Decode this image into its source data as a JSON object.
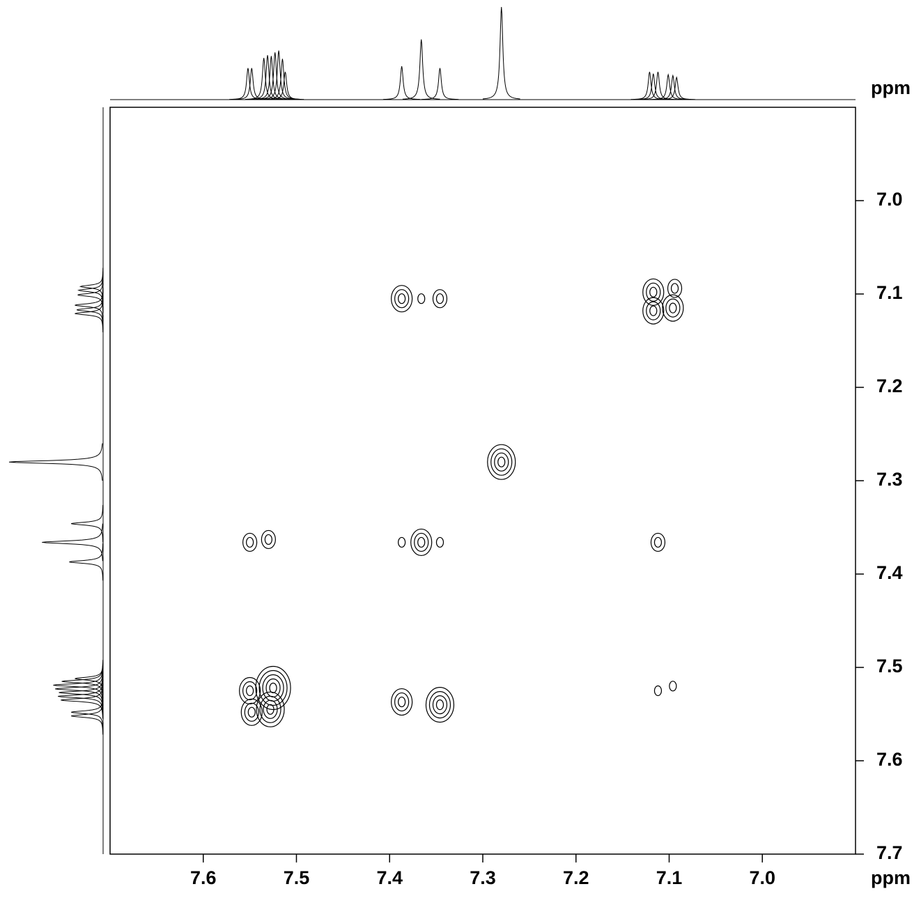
{
  "chart_data": {
    "type": "contour",
    "xlabel": "ppm",
    "ylabel": "ppm",
    "xlim": [
      7.7,
      6.9
    ],
    "ylim": [
      6.9,
      7.7
    ],
    "xticks": [
      7.6,
      7.5,
      7.4,
      7.3,
      7.2,
      7.1,
      {
        "value": 7.0,
        "label": "7.0"
      }
    ],
    "yticks": [
      {
        "value": 7.0,
        "label": "7.0"
      },
      7.1,
      7.2,
      7.3,
      7.4,
      7.5,
      7.6,
      7.7
    ],
    "color": "#000000",
    "projection": {
      "shifts": [
        7.552,
        7.548,
        7.535,
        7.531,
        7.527,
        7.523,
        7.519,
        7.515,
        7.512,
        7.387,
        7.366,
        7.346,
        7.28,
        7.121,
        7.117,
        7.112,
        7.101,
        7.096,
        7.092
      ],
      "intensities": [
        34,
        34,
        45,
        48,
        47,
        51,
        53,
        44,
        30,
        36,
        65,
        34,
        100,
        30,
        28,
        30,
        27,
        26,
        24
      ]
    },
    "peaks": [
      {
        "x": 7.525,
        "y": 7.522,
        "levels": 5
      },
      {
        "x": 7.55,
        "y": 7.525,
        "levels": 3
      },
      {
        "x": 7.548,
        "y": 7.548,
        "levels": 3
      },
      {
        "x": 7.528,
        "y": 7.545,
        "levels": 4
      },
      {
        "x": 7.387,
        "y": 7.537,
        "levels": 3
      },
      {
        "x": 7.346,
        "y": 7.54,
        "levels": 4
      },
      {
        "x": 7.112,
        "y": 7.525,
        "levels": 1
      },
      {
        "x": 7.096,
        "y": 7.52,
        "levels": 1
      },
      {
        "x": 7.55,
        "y": 7.366,
        "levels": 2
      },
      {
        "x": 7.53,
        "y": 7.363,
        "levels": 2
      },
      {
        "x": 7.387,
        "y": 7.366,
        "levels": 1
      },
      {
        "x": 7.366,
        "y": 7.366,
        "levels": 3
      },
      {
        "x": 7.346,
        "y": 7.366,
        "levels": 1
      },
      {
        "x": 7.112,
        "y": 7.366,
        "levels": 2
      },
      {
        "x": 7.28,
        "y": 7.28,
        "levels": 4
      },
      {
        "x": 7.387,
        "y": 7.105,
        "levels": 3
      },
      {
        "x": 7.366,
        "y": 7.105,
        "levels": 1
      },
      {
        "x": 7.346,
        "y": 7.105,
        "levels": 2
      },
      {
        "x": 7.117,
        "y": 7.098,
        "levels": 3
      },
      {
        "x": 7.094,
        "y": 7.094,
        "levels": 2
      },
      {
        "x": 7.117,
        "y": 7.118,
        "levels": 3
      },
      {
        "x": 7.096,
        "y": 7.115,
        "levels": 3
      }
    ]
  }
}
